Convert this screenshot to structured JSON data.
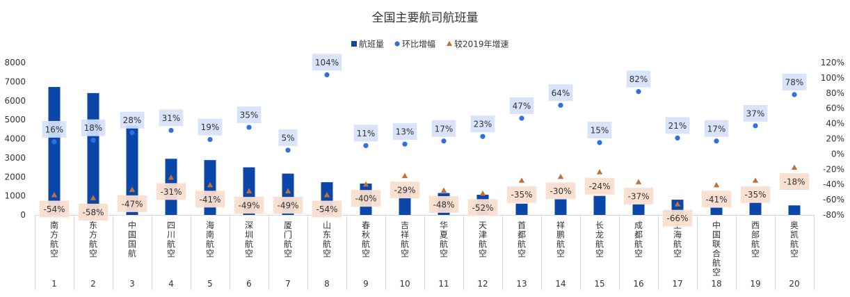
{
  "chart_data": {
    "type": "bar",
    "title": "全国主要航司航班量",
    "legend_position": "top-center",
    "grid": false,
    "ylim_left": [
      0,
      8000
    ],
    "ylim_right": [
      -0.8,
      1.2
    ],
    "left_ticks": [
      "0",
      "1000",
      "2000",
      "3000",
      "4000",
      "5000",
      "6000",
      "7000",
      "8000"
    ],
    "right_ticks": [
      "-80%",
      "-60%",
      "-40%",
      "-20%",
      "0%",
      "20%",
      "40%",
      "60%",
      "80%",
      "100%",
      "120%"
    ],
    "categories": [
      "南方航空",
      "东方航空",
      "中国国航",
      "四川航空",
      "海南航空",
      "深圳航空",
      "厦门航空",
      "山东航空",
      "春秋航空",
      "吉祥航空",
      "华夏航空",
      "天津航空",
      "首都航空",
      "祥鹏航空",
      "长龙航空",
      "成都航空",
      "上海航空",
      "中国联合航空",
      "西部航空",
      "奥凯航空"
    ],
    "ranks": [
      "1",
      "2",
      "3",
      "4",
      "5",
      "6",
      "7",
      "8",
      "9",
      "10",
      "11",
      "12",
      "13",
      "14",
      "15",
      "16",
      "17",
      "18",
      "19",
      "20"
    ],
    "series": [
      {
        "name": "航班量",
        "axis": "left",
        "kind": "bar",
        "color": "#0a47a8",
        "values": [
          6720,
          6400,
          4700,
          2950,
          2880,
          2500,
          2170,
          1720,
          1650,
          1400,
          1150,
          1060,
          590,
          820,
          1000,
          560,
          800,
          380,
          640,
          500
        ]
      },
      {
        "name": "环比增幅",
        "axis": "right",
        "kind": "scatter",
        "color": "#2f6fe0",
        "values": [
          0.16,
          0.18,
          0.28,
          0.31,
          0.19,
          0.35,
          0.05,
          1.04,
          0.11,
          0.13,
          0.17,
          0.23,
          0.47,
          0.64,
          0.15,
          0.82,
          0.21,
          0.17,
          0.37,
          0.78
        ],
        "labels": [
          "16%",
          "18%",
          "28%",
          "31%",
          "19%",
          "35%",
          "5%",
          "104%",
          "11%",
          "13%",
          "17%",
          "23%",
          "47%",
          "64%",
          "15%",
          "82%",
          "21%",
          "17%",
          "37%",
          "78%"
        ]
      },
      {
        "name": "较2019年增速",
        "axis": "right",
        "kind": "scatter",
        "color": "#c0703a",
        "values": [
          -0.54,
          -0.58,
          -0.47,
          -0.31,
          -0.41,
          -0.49,
          -0.49,
          -0.54,
          -0.4,
          -0.29,
          -0.48,
          -0.52,
          -0.35,
          -0.3,
          -0.24,
          -0.37,
          -0.66,
          -0.41,
          -0.35,
          -0.18
        ],
        "labels": [
          "-54%",
          "-58%",
          "-47%",
          "-31%",
          "-41%",
          "-49%",
          "-49%",
          "-54%",
          "-40%",
          "-29%",
          "-48%",
          "-52%",
          "-35%",
          "-30%",
          "-24%",
          "-37%",
          "-66%",
          "-41%",
          "-35%",
          "-18%"
        ]
      }
    ]
  }
}
